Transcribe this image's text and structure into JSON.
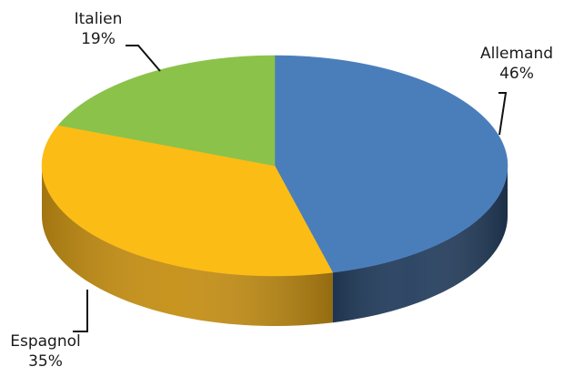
{
  "chart_data": {
    "type": "pie",
    "style": "3d",
    "title": "",
    "slices": [
      {
        "name": "Allemand",
        "value": 46,
        "label": "46%",
        "color": "#4a7ebb",
        "side_color": "#243e5e"
      },
      {
        "name": "Espagnol",
        "value": 35,
        "label": "35%",
        "color": "#fbbc16",
        "side_color": "#c58f14"
      },
      {
        "name": "Italien",
        "value": 19,
        "label": "19%",
        "color": "#8bc24a",
        "side_color": "#5f8a2f"
      }
    ],
    "legend": "none"
  }
}
